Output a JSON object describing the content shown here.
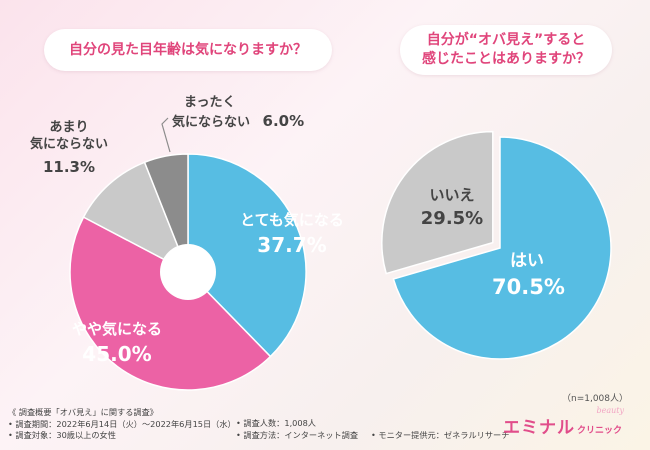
{
  "chart_data": [
    {
      "type": "pie",
      "title": "自分の見た目年齢は気になりますか？",
      "slices": [
        {
          "label": "とても気になる",
          "value": 37.7,
          "color": "#57bde3"
        },
        {
          "label": "やや気になる",
          "value": 45.0,
          "color": "#ec62a5"
        },
        {
          "label_lines": [
            "あまり",
            "気にならない"
          ],
          "value": 11.3,
          "color": "#c9c9c9"
        },
        {
          "label_lines": [
            "まったく",
            "気にならない"
          ],
          "value": 6.0,
          "color": "#8c8c8c"
        }
      ],
      "value_texts": [
        "37.7%",
        "45.0%",
        "11.3%",
        "6.0%"
      ]
    },
    {
      "type": "pie",
      "title_lines": [
        "自分が“オバ見え”すると",
        "感じたことはありますか？"
      ],
      "slices": [
        {
          "label": "はい",
          "value": 70.5,
          "color": "#57bde3"
        },
        {
          "label": "いいえ",
          "value": 29.5,
          "color": "#c9c9c9"
        }
      ],
      "value_texts": [
        "70.5%",
        "29.5%"
      ]
    }
  ],
  "sample_note": "（n=1,008人）",
  "footer": {
    "heading": "《 調査概要「オバ見え」に関する調査》",
    "period": "• 調査期間：2022年6月14日（火）〜2022年6月15日（水）",
    "target": "• 調査対象：30歳以上の女性",
    "count": "• 調査人数：1,008人",
    "method": "• 調査方法：インターネット調査",
    "provider": "• モニター提供元：ゼネラルリサーチ"
  },
  "logo": {
    "main": "エミナル",
    "sub": "クリニック",
    "tag": "beauty"
  }
}
